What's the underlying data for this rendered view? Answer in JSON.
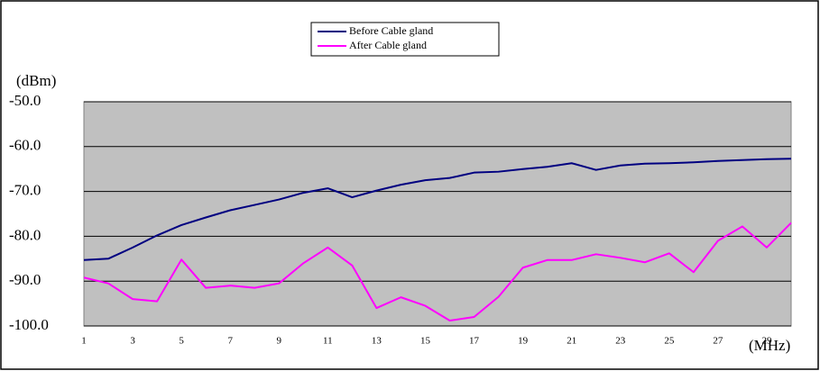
{
  "chart_data": {
    "type": "line",
    "y_label": "(dBm)",
    "x_label": "(MHz)",
    "x": [
      1,
      2,
      3,
      4,
      5,
      6,
      7,
      8,
      9,
      10,
      11,
      12,
      13,
      14,
      15,
      16,
      17,
      18,
      19,
      20,
      21,
      22,
      23,
      24,
      25,
      26,
      27,
      28,
      29,
      30
    ],
    "series": [
      {
        "name": "Before Cable gland",
        "color": "#000080",
        "values": [
          -85.3,
          -85,
          -82.5,
          -79.8,
          -77.5,
          -75.8,
          -74.2,
          -73,
          -71.8,
          -70.3,
          -69.3,
          -71.3,
          -69.8,
          -68.5,
          -67.5,
          -67,
          -65.8,
          -65.6,
          -65,
          -64.5,
          -63.7,
          -65.2,
          -64.2,
          -63.8,
          -63.7,
          -63.5,
          -63.2,
          -63,
          -62.8,
          -62.7
        ]
      },
      {
        "name": "After Cable gland",
        "color": "#FF00FF",
        "values": [
          -89.2,
          -90.5,
          -94,
          -94.5,
          -85.2,
          -91.5,
          -91,
          -91.5,
          -90.5,
          -86,
          -82.5,
          -86.5,
          -96,
          -93.6,
          -95.5,
          -98.8,
          -98,
          -93.5,
          -87,
          -85.3,
          -85.3,
          -84,
          -84.8,
          -85.8,
          -83.8,
          -88,
          -81,
          -77.8,
          -82.5,
          -77
        ]
      }
    ],
    "xlim": [
      1,
      30
    ],
    "xticks": [
      1,
      3,
      5,
      7,
      9,
      11,
      13,
      15,
      17,
      19,
      21,
      23,
      25,
      27,
      29
    ],
    "ylim": [
      -100,
      -50
    ],
    "yticks": [
      {
        "value": -100,
        "label": "-100.0"
      },
      {
        "value": -90,
        "label": "-90.0"
      },
      {
        "value": -80,
        "label": "-80.0"
      },
      {
        "value": -70,
        "label": "-70.0"
      },
      {
        "value": -60,
        "label": "-60.0"
      },
      {
        "value": -50,
        "label": "-50.0"
      }
    ],
    "grid": true,
    "plot_background": "#C0C0C0"
  }
}
